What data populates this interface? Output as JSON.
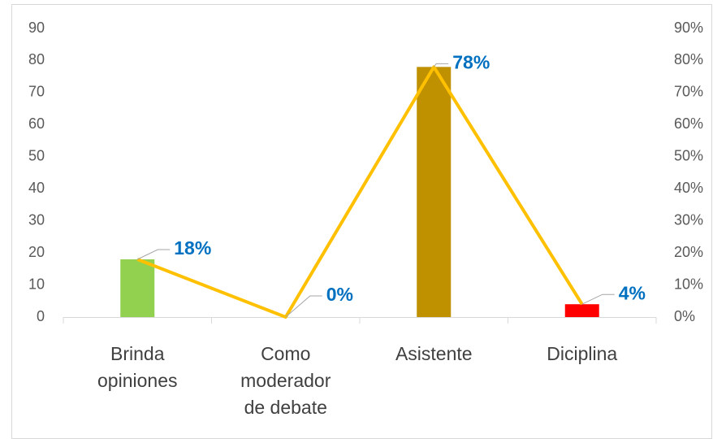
{
  "chart_data": {
    "type": "bar",
    "categories": [
      "Brinda opiniones",
      "Como moderador de debate",
      "Asistente",
      "Diciplina"
    ],
    "series": [
      {
        "type": "bar",
        "colors": [
          "#92d050",
          "#92d050",
          "#bf9000",
          "#ff0000"
        ],
        "values": [
          18,
          0,
          78,
          4
        ]
      },
      {
        "type": "line",
        "axis": "y2",
        "color": "#ffc000",
        "values": [
          18,
          0,
          78,
          4
        ],
        "value_labels": [
          "18%",
          "0%",
          "78%",
          "4%"
        ],
        "label_color": "#0070c0"
      }
    ],
    "ylim": [
      0,
      90
    ],
    "yticks": [
      0,
      10,
      20,
      30,
      40,
      50,
      60,
      70,
      80,
      90
    ],
    "y2lim": [
      0,
      90
    ],
    "y2ticks": [
      {
        "value": 0,
        "label": "0%"
      },
      {
        "value": 10,
        "label": "10%"
      },
      {
        "value": 20,
        "label": "20%"
      },
      {
        "value": 30,
        "label": "30%"
      },
      {
        "value": 40,
        "label": "40%"
      },
      {
        "value": 50,
        "label": "50%"
      },
      {
        "value": 60,
        "label": "60%"
      },
      {
        "value": 70,
        "label": "70%"
      },
      {
        "value": 80,
        "label": "80%"
      },
      {
        "value": 90,
        "label": "90%"
      }
    ],
    "grid": false
  }
}
